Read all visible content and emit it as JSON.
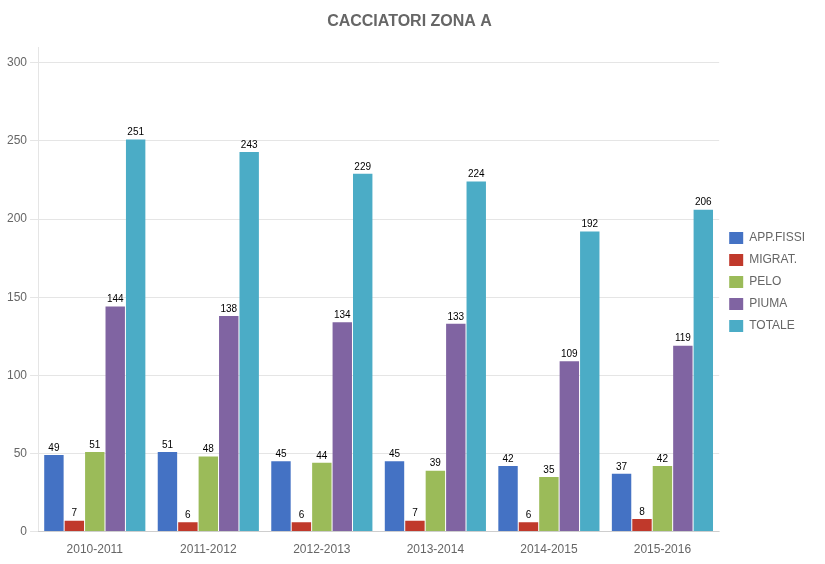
{
  "chart_data": {
    "type": "bar",
    "title": "CACCIATORI ZONA A",
    "categories": [
      "2010-2011",
      "2011-2012",
      "2012-2013",
      "2013-2014",
      "2014-2015",
      "2015-2016"
    ],
    "series": [
      {
        "name": "APP.FISSI",
        "color": "#4472c4",
        "values": [
          49,
          51,
          45,
          45,
          42,
          37
        ]
      },
      {
        "name": "MIGRAT.",
        "color": "#c0392b",
        "values": [
          7,
          6,
          6,
          7,
          6,
          8
        ]
      },
      {
        "name": "PELO",
        "color": "#9bbb59",
        "values": [
          51,
          48,
          44,
          39,
          35,
          42
        ]
      },
      {
        "name": "PIUMA",
        "color": "#8064a2",
        "values": [
          144,
          138,
          134,
          133,
          109,
          119
        ]
      },
      {
        "name": "TOTALE",
        "color": "#4bacc6",
        "values": [
          251,
          243,
          229,
          224,
          192,
          206
        ]
      }
    ],
    "ylim": [
      0,
      310
    ],
    "yticks": [
      0,
      50,
      100,
      150,
      200,
      250,
      300
    ],
    "grid": true,
    "legend": "right",
    "data_labels": true
  }
}
